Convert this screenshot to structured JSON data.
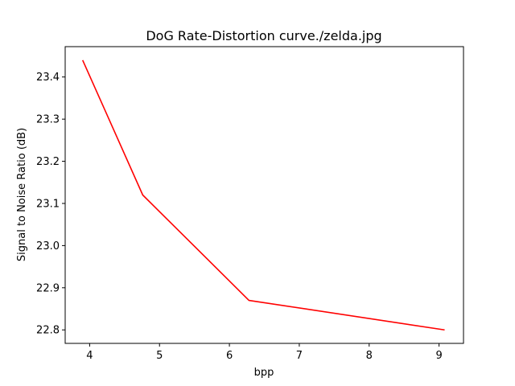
{
  "chart_data": {
    "type": "line",
    "title": "DoG Rate-Distortion curve./zelda.jpg",
    "xlabel": "bpp",
    "ylabel": "Signal to Noise Ratio (dB)",
    "xlim": [
      3.65,
      9.35
    ],
    "ylim": [
      22.768,
      23.472
    ],
    "x_ticks": [
      4,
      5,
      6,
      7,
      8,
      9
    ],
    "y_ticks": [
      22.8,
      22.9,
      23.0,
      23.1,
      23.2,
      23.3,
      23.4
    ],
    "x_tick_labels": [
      "4",
      "5",
      "6",
      "7",
      "8",
      "9"
    ],
    "y_tick_labels": [
      "22.8",
      "22.9",
      "23.0",
      "23.1",
      "23.2",
      "23.3",
      "23.4"
    ],
    "grid": false,
    "series": [
      {
        "color": "#ff0000",
        "x": [
          3.9,
          4.76,
          6.28,
          9.08
        ],
        "y": [
          23.44,
          23.12,
          22.87,
          22.8
        ]
      }
    ]
  }
}
